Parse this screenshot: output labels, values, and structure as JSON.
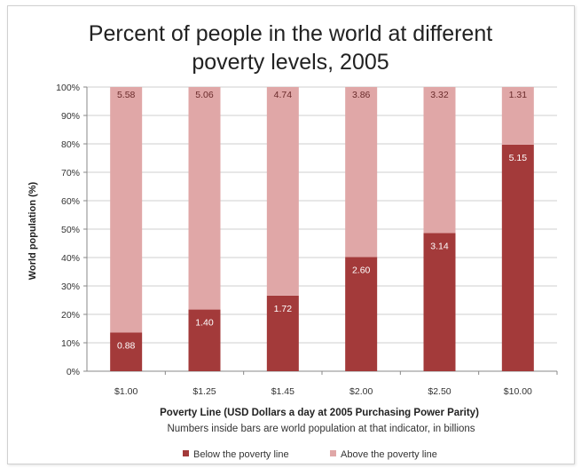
{
  "chart_data": {
    "type": "bar",
    "stacked": true,
    "title_line1": "Percent of people in the world at different",
    "title_line2": "poverty levels, 2005",
    "ylabel": "World population (%)",
    "xlabel": "Poverty Line (USD Dollars a day at 2005 Purchasing Power Parity)",
    "note": "Numbers inside bars are world population at that indicator, in billions",
    "ylim": [
      0,
      100
    ],
    "yticks": [
      "0%",
      "10%",
      "20%",
      "30%",
      "40%",
      "50%",
      "60%",
      "70%",
      "80%",
      "90%",
      "100%"
    ],
    "grid": true,
    "legend_position": "bottom",
    "categories": [
      "$1.00",
      "$1.25",
      "$1.45",
      "$2.00",
      "$2.50",
      "$10.00"
    ],
    "series": [
      {
        "name": "Below the poverty line",
        "color": "#a33a3a",
        "values": [
          13.6,
          21.7,
          26.6,
          40.2,
          48.6,
          79.7
        ],
        "labels": [
          "0.88",
          "1.40",
          "1.72",
          "2.60",
          "3.14",
          "5.15"
        ]
      },
      {
        "name": "Above the poverty line",
        "color": "#e0a7a7",
        "values": [
          86.4,
          78.3,
          73.4,
          59.8,
          51.4,
          20.3
        ],
        "labels": [
          "5.58",
          "5.06",
          "4.74",
          "3.86",
          "3.32",
          "1.31"
        ]
      }
    ]
  }
}
